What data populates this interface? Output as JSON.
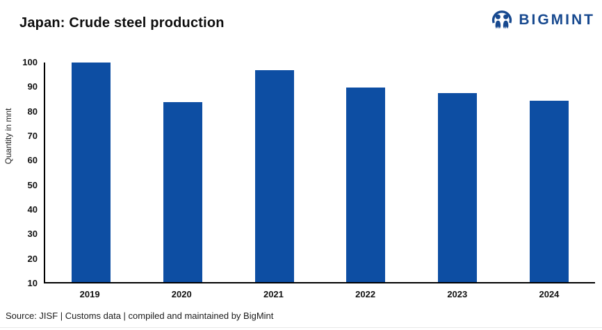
{
  "header": {
    "title": "Japan: Crude steel production",
    "logo": {
      "brand": "BIGMINT"
    }
  },
  "chart_data": {
    "type": "bar",
    "title": "Japan: Crude steel production",
    "categories": [
      "2019",
      "2020",
      "2021",
      "2022",
      "2023",
      "2024"
    ],
    "values": [
      99.3,
      83.2,
      96.3,
      89.2,
      87.0,
      84.0
    ],
    "xlabel": "",
    "ylabel": "Quantity in mnt",
    "ylim": [
      10,
      100
    ],
    "yticks": [
      10,
      20,
      30,
      40,
      50,
      60,
      70,
      80,
      90,
      100
    ],
    "grid": false,
    "legend": "none",
    "bar_color": "#0d4ea3"
  },
  "footer": {
    "source": "Source: JISF | Customs data | compiled and maintained by BigMint"
  },
  "colors": {
    "bar": "#0d4ea3",
    "logo_navy": "#17498f",
    "axis": "#000000"
  }
}
